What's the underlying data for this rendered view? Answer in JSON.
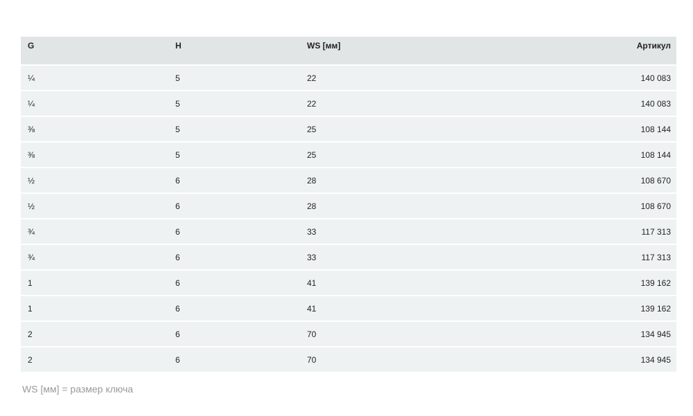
{
  "table": {
    "headers": [
      "G",
      "H",
      "WS [мм]",
      "Артикул"
    ],
    "rows": [
      [
        "¼",
        "5",
        "22",
        "140 083"
      ],
      [
        "¼",
        "5",
        "22",
        "140 083"
      ],
      [
        "⅜",
        "5",
        "25",
        "108 144"
      ],
      [
        "⅜",
        "5",
        "25",
        "108 144"
      ],
      [
        "½",
        "6",
        "28",
        "108 670"
      ],
      [
        "½",
        "6",
        "28",
        "108 670"
      ],
      [
        "¾",
        "6",
        "33",
        "117 313"
      ],
      [
        "¾",
        "6",
        "33",
        "117 313"
      ],
      [
        "1",
        "6",
        "41",
        "139 162"
      ],
      [
        "1",
        "6",
        "41",
        "139 162"
      ],
      [
        "2",
        "6",
        "70",
        "134 945"
      ],
      [
        "2",
        "6",
        "70",
        "134 945"
      ]
    ]
  },
  "note": "WS [мм]  =  размер ключа"
}
